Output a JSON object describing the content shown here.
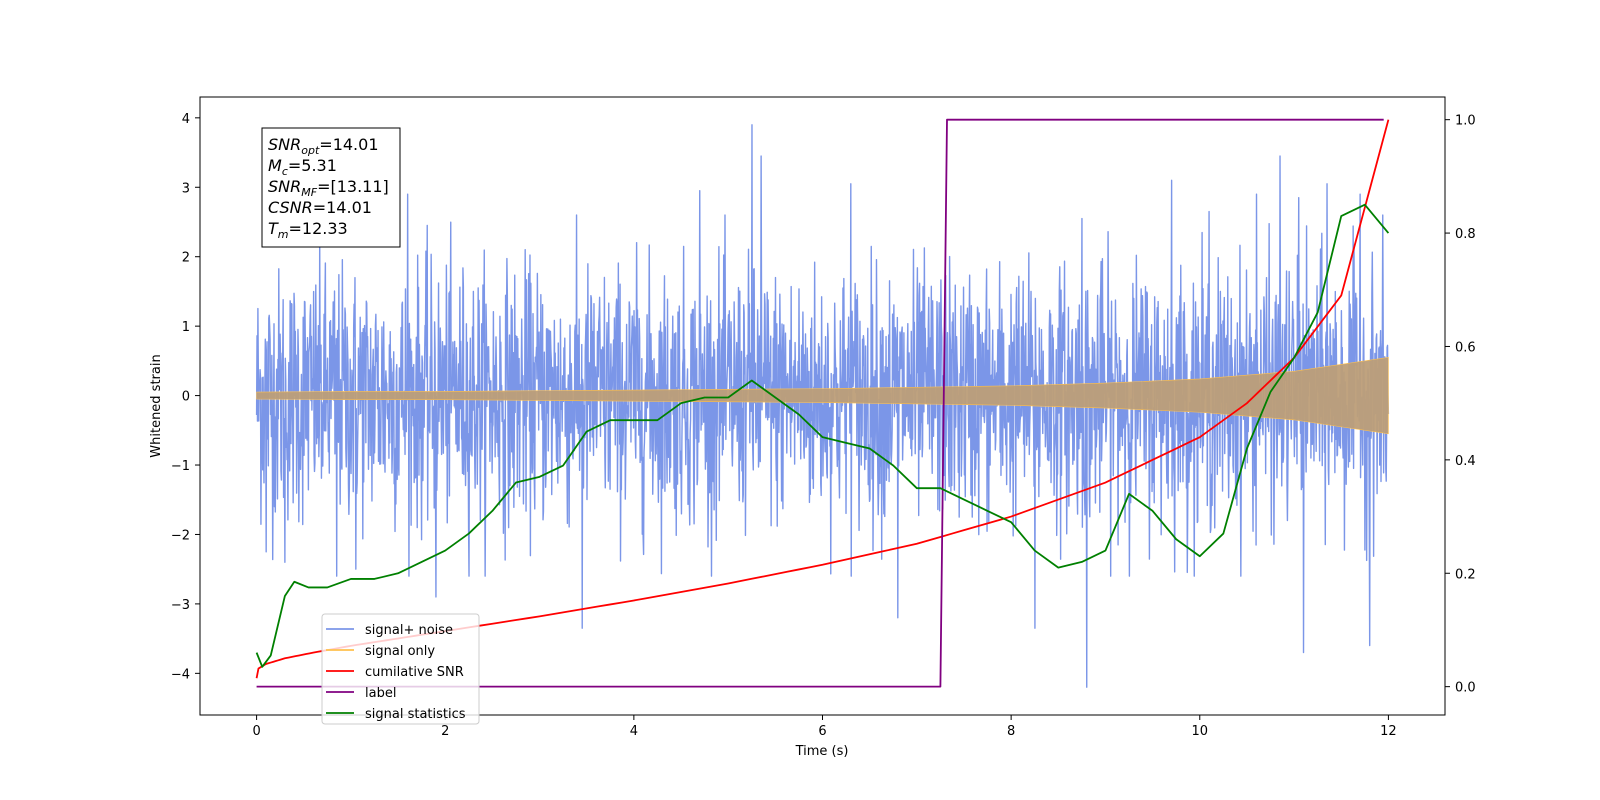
{
  "chart_data": {
    "type": "line",
    "xlabel": "Time (s)",
    "ylabel": "Whitened strain",
    "xlim": [
      -0.6,
      12.6
    ],
    "ylim": [
      -4.6,
      4.3
    ],
    "y2lim": [
      -0.05,
      1.04
    ],
    "x_ticks": [
      0,
      2,
      4,
      6,
      8,
      10,
      12
    ],
    "y_ticks": [
      -4,
      -3,
      -2,
      -1,
      0,
      1,
      2,
      3,
      4
    ],
    "y2_ticks": [
      0.0,
      0.2,
      0.4,
      0.6,
      0.8,
      1.0
    ],
    "x_tick_labels": [
      "0",
      "2",
      "4",
      "6",
      "8",
      "10",
      "12"
    ],
    "y_tick_labels": [
      "−4",
      "−3",
      "−2",
      "−1",
      "0",
      "1",
      "2",
      "3",
      "4"
    ],
    "y2_tick_labels": [
      "0.0",
      "0.2",
      "0.4",
      "0.6",
      "0.8",
      "1.0"
    ],
    "legend_position": "bottom-left",
    "grid": false,
    "series": [
      {
        "name": "signal+ noise",
        "color": "#7b96e8",
        "axis": "left",
        "kind": "noise-band",
        "x_range": [
          0,
          12
        ],
        "typical_envelope": [
          -2.0,
          2.0
        ],
        "notable_peaks": [
          [
            0.1,
            -2.25
          ],
          [
            0.3,
            -2.4
          ],
          [
            0.85,
            -2.6
          ],
          [
            1.05,
            -2.5
          ],
          [
            1.6,
            2.9
          ],
          [
            1.9,
            -2.9
          ],
          [
            3.45,
            -3.35
          ],
          [
            4.7,
            2.95
          ],
          [
            5.25,
            3.9
          ],
          [
            5.35,
            3.45
          ],
          [
            6.3,
            3.05
          ],
          [
            6.8,
            -3.2
          ],
          [
            8.25,
            -3.35
          ],
          [
            8.75,
            2.55
          ],
          [
            8.8,
            -4.2
          ],
          [
            9.7,
            3.1
          ],
          [
            10.1,
            2.65
          ],
          [
            10.6,
            2.9
          ],
          [
            10.85,
            3.45
          ],
          [
            11.05,
            2.85
          ],
          [
            11.35,
            3.05
          ],
          [
            11.7,
            2.9
          ],
          [
            11.1,
            -3.7
          ],
          [
            11.8,
            -3.6
          ]
        ]
      },
      {
        "name": "signal only",
        "color": "#ffc04d",
        "axis": "left",
        "kind": "chirp-envelope",
        "x_range": [
          0,
          12
        ],
        "envelope_points": [
          [
            0,
            0.05
          ],
          [
            1,
            0.06
          ],
          [
            2,
            0.06
          ],
          [
            3,
            0.07
          ],
          [
            4,
            0.08
          ],
          [
            5,
            0.09
          ],
          [
            6,
            0.1
          ],
          [
            7,
            0.12
          ],
          [
            8,
            0.14
          ],
          [
            9,
            0.18
          ],
          [
            10,
            0.24
          ],
          [
            11,
            0.35
          ],
          [
            12,
            0.55
          ]
        ]
      },
      {
        "name": "cumilative SNR",
        "color": "#ff0000",
        "axis": "right",
        "x": [
          0,
          0.02,
          0.1,
          0.3,
          0.6,
          1.0,
          1.5,
          2,
          3,
          4,
          5,
          6,
          7,
          8,
          9,
          10,
          10.5,
          11,
          11.5,
          12
        ],
        "y": [
          0.015,
          0.032,
          0.04,
          0.05,
          0.06,
          0.072,
          0.085,
          0.098,
          0.124,
          0.152,
          0.182,
          0.215,
          0.252,
          0.3,
          0.36,
          0.44,
          0.5,
          0.58,
          0.69,
          1.0
        ]
      },
      {
        "name": "label",
        "color": "#800080",
        "axis": "right",
        "x": [
          0,
          7.25,
          7.32,
          11.95
        ],
        "y": [
          0.0,
          0.0,
          1.0,
          1.0
        ]
      },
      {
        "name": "signal statistics",
        "color": "#008000",
        "axis": "right",
        "x": [
          0,
          0.06,
          0.15,
          0.3,
          0.4,
          0.55,
          0.75,
          1.0,
          1.25,
          1.5,
          1.75,
          2.0,
          2.25,
          2.5,
          2.75,
          3.0,
          3.25,
          3.5,
          3.75,
          4.0,
          4.25,
          4.5,
          4.75,
          5.0,
          5.25,
          5.5,
          5.75,
          6.0,
          6.25,
          6.5,
          6.75,
          7.0,
          7.25,
          7.5,
          7.75,
          8.0,
          8.25,
          8.5,
          8.75,
          9.0,
          9.25,
          9.5,
          9.75,
          10.0,
          10.25,
          10.5,
          10.75,
          11.0,
          11.25,
          11.5,
          11.75,
          12.0
        ],
        "y": [
          0.06,
          0.035,
          0.055,
          0.16,
          0.185,
          0.175,
          0.175,
          0.19,
          0.19,
          0.2,
          0.22,
          0.24,
          0.27,
          0.31,
          0.36,
          0.37,
          0.39,
          0.45,
          0.47,
          0.47,
          0.47,
          0.5,
          0.51,
          0.51,
          0.54,
          0.51,
          0.48,
          0.44,
          0.43,
          0.42,
          0.39,
          0.35,
          0.35,
          0.33,
          0.31,
          0.29,
          0.24,
          0.21,
          0.22,
          0.24,
          0.34,
          0.31,
          0.26,
          0.23,
          0.27,
          0.42,
          0.52,
          0.58,
          0.66,
          0.83,
          0.85,
          0.8
        ]
      }
    ],
    "annotation": {
      "lines": [
        {
          "base": "SNR",
          "sub": "opt",
          "value": "=14.01"
        },
        {
          "base": "M",
          "sub": "c",
          "value": "=5.31"
        },
        {
          "base": "SNR",
          "sub": "MF",
          "value": "=[13.11]"
        },
        {
          "base": "CSNR",
          "sub": "",
          "value": "=14.01"
        },
        {
          "base": "T",
          "sub": "m",
          "value": "=12.33"
        }
      ]
    }
  }
}
